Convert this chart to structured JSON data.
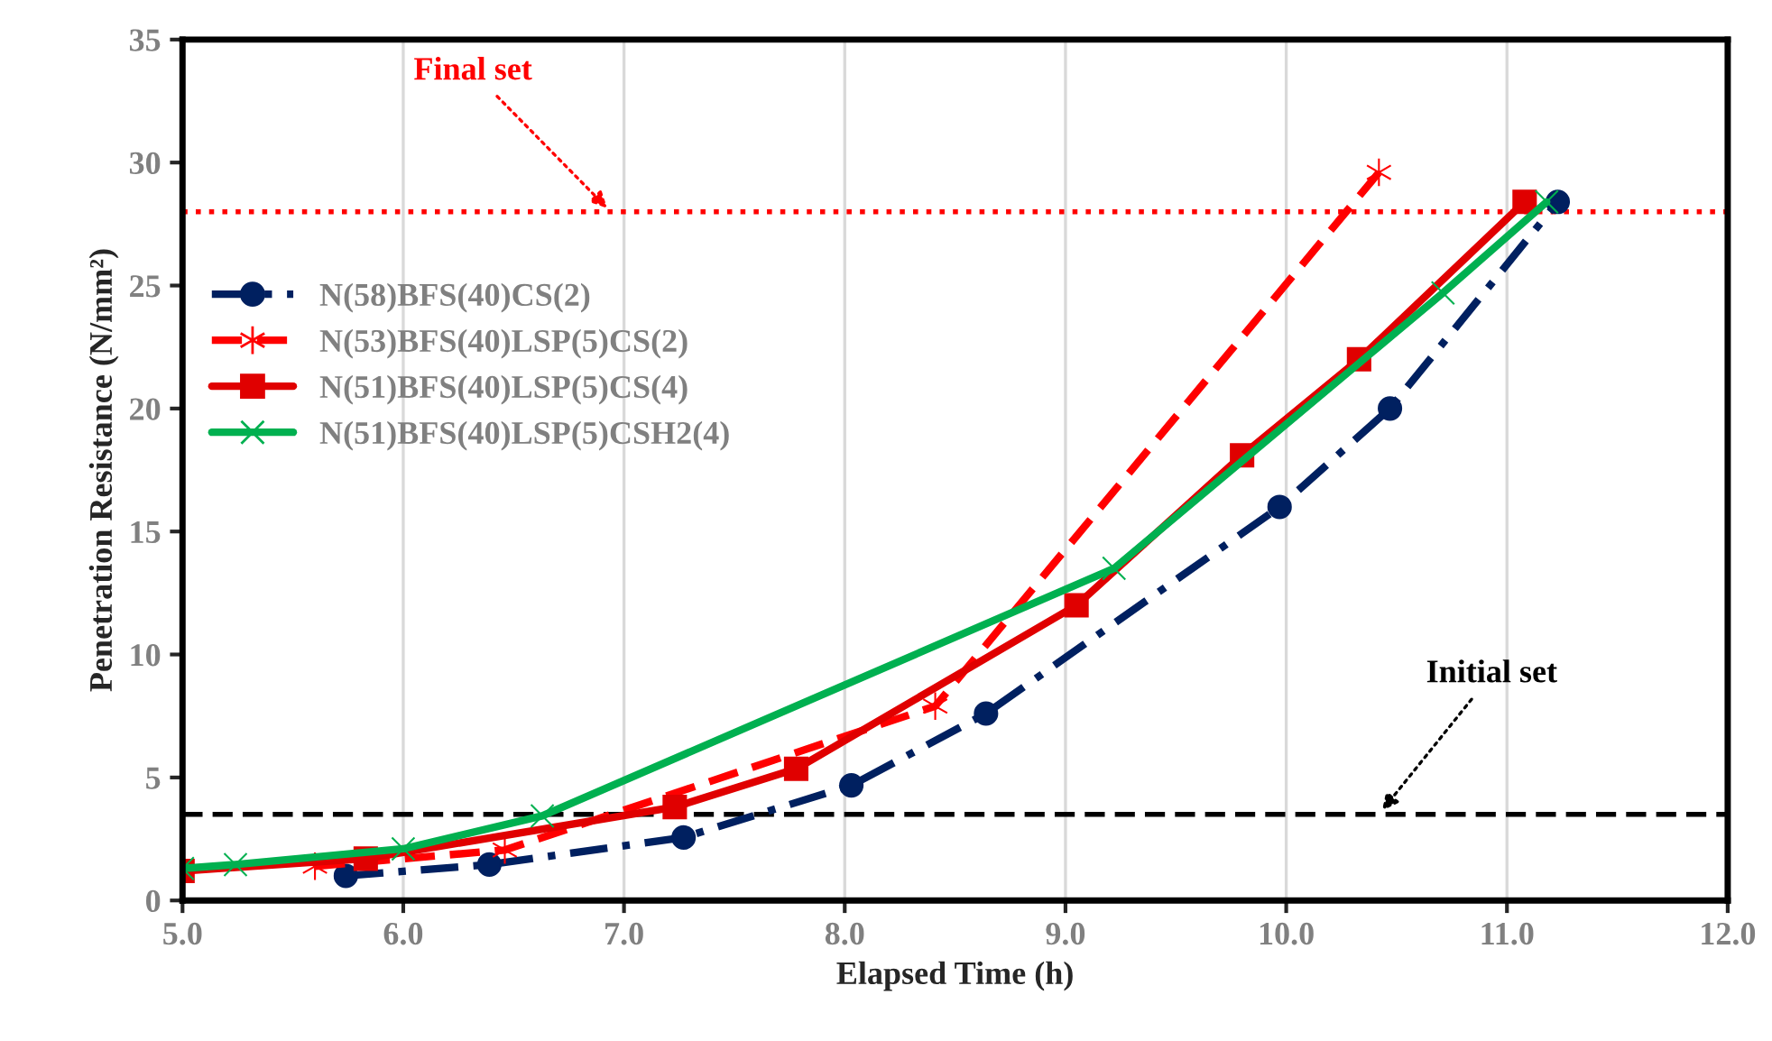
{
  "chart_data": {
    "type": "line",
    "xlabel": "Elapsed Time (h)",
    "ylabel": "Penetration Resistance (N/mm²)",
    "xlim": [
      5.0,
      12.0
    ],
    "xticks": [
      {
        "value": 5,
        "label": "5.0"
      },
      {
        "value": 6,
        "label": "6.0"
      },
      {
        "value": 7,
        "label": "7.0"
      },
      {
        "value": 8,
        "label": "8.0"
      },
      {
        "value": 9,
        "label": "9.0"
      },
      {
        "value": 10,
        "label": "10.0"
      },
      {
        "value": 11,
        "label": "11.0"
      },
      {
        "value": 12,
        "label": "12.0"
      }
    ],
    "ylim": [
      0,
      35
    ],
    "yticks": [
      0,
      5,
      10,
      15,
      20,
      25,
      30,
      35
    ],
    "grid": "x",
    "legend": "left",
    "series": [
      {
        "name": "N(58)BFS(40)CS(2)",
        "color": "#002060",
        "marker": "circle",
        "line_style": "dashdot",
        "x": [
          5.74,
          6.39,
          7.27,
          8.03,
          8.64,
          9.97,
          10.47,
          11.23
        ],
        "values": [
          1.0,
          1.46,
          2.56,
          4.68,
          7.6,
          16.0,
          20.0,
          28.4
        ]
      },
      {
        "name": "N(53)BFS(40)LSP(5)CS(2)",
        "color": "#ff0000",
        "marker": "cross",
        "line_style": "dashed",
        "x": [
          5.6,
          6.46,
          8.41,
          10.42
        ],
        "values": [
          1.39,
          2.05,
          7.9,
          29.6
        ]
      },
      {
        "name": "N(51)BFS(40)LSP(5)CS(4)",
        "color": "#e00000",
        "marker": "square",
        "line_style": "solid",
        "x": [
          5.0,
          5.83,
          7.23,
          7.78,
          9.05,
          9.8,
          10.33,
          11.08
        ],
        "values": [
          1.2,
          1.7,
          3.8,
          5.35,
          12.0,
          18.1,
          22.0,
          28.4
        ]
      },
      {
        "name": "N(51)BFS(40)LSP(5)CSH2(4)",
        "color": "#00b050",
        "marker": "x",
        "line_style": "solid",
        "x": [
          5.0,
          5.24,
          6.0,
          6.63,
          9.22,
          10.71,
          11.18
        ],
        "values": [
          1.3,
          1.46,
          2.1,
          3.44,
          13.5,
          24.7,
          28.4
        ]
      }
    ],
    "ref_lines": [
      {
        "axis": "y",
        "value": 28,
        "color": "#ff0000",
        "line_style": "dotted"
      },
      {
        "axis": "y",
        "value": 3.5,
        "color": "#000000",
        "line_style": "dashed"
      }
    ],
    "annotations": [
      {
        "text": "Final set",
        "x": 6.94,
        "y": 28
      },
      {
        "text": "Initial set",
        "x": 10.42,
        "y": 3.5
      }
    ]
  }
}
